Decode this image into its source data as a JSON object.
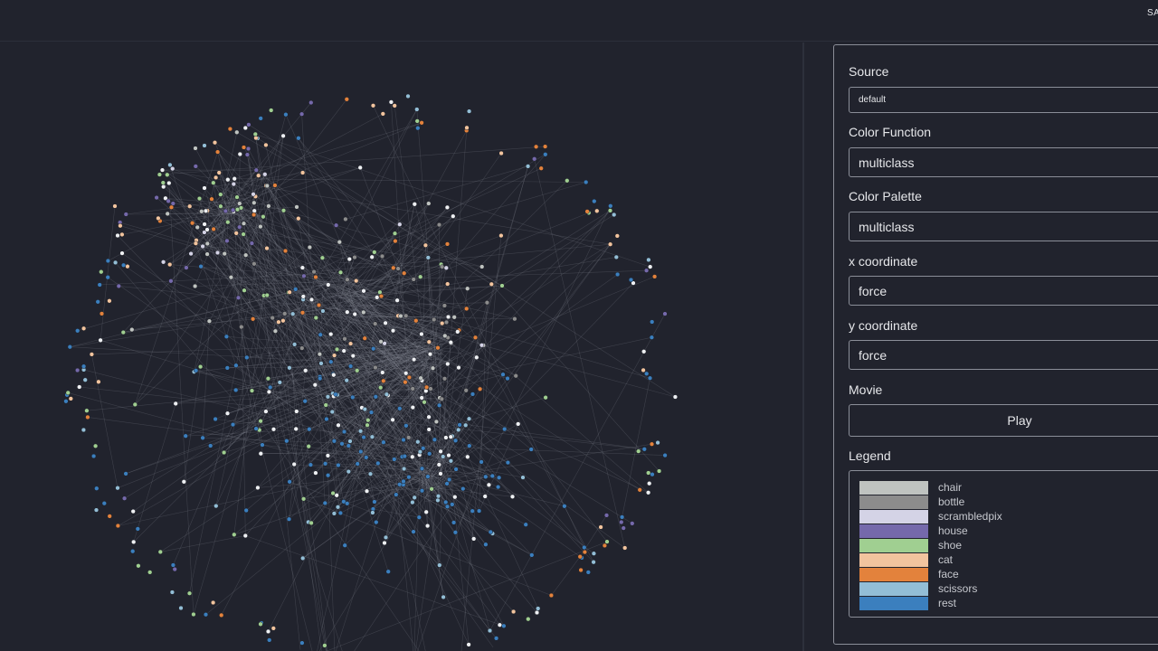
{
  "topbar": {
    "brand": "SA"
  },
  "controls": {
    "source_label": "Source",
    "source_value": "default",
    "color_function_label": "Color Function",
    "color_function_value": "multiclass",
    "color_palette_label": "Color Palette",
    "color_palette_value": "multiclass",
    "x_label": "x coordinate",
    "x_value": "force",
    "y_label": "y coordinate",
    "y_value": "force",
    "movie_label": "Movie",
    "play_label": "Play",
    "legend_label": "Legend"
  },
  "legend": [
    {
      "label": "chair",
      "color": "#bfc3c0"
    },
    {
      "label": "bottle",
      "color": "#8c8c8c"
    },
    {
      "label": "scrambledpix",
      "color": "#d4d3e6"
    },
    {
      "label": "house",
      "color": "#7569ab"
    },
    {
      "label": "shoe",
      "color": "#a0cf91"
    },
    {
      "label": "cat",
      "color": "#f2c49e"
    },
    {
      "label": "face",
      "color": "#e3823c"
    },
    {
      "label": "scissors",
      "color": "#93bed6"
    },
    {
      "label": "rest",
      "color": "#3b7fbe"
    }
  ]
}
